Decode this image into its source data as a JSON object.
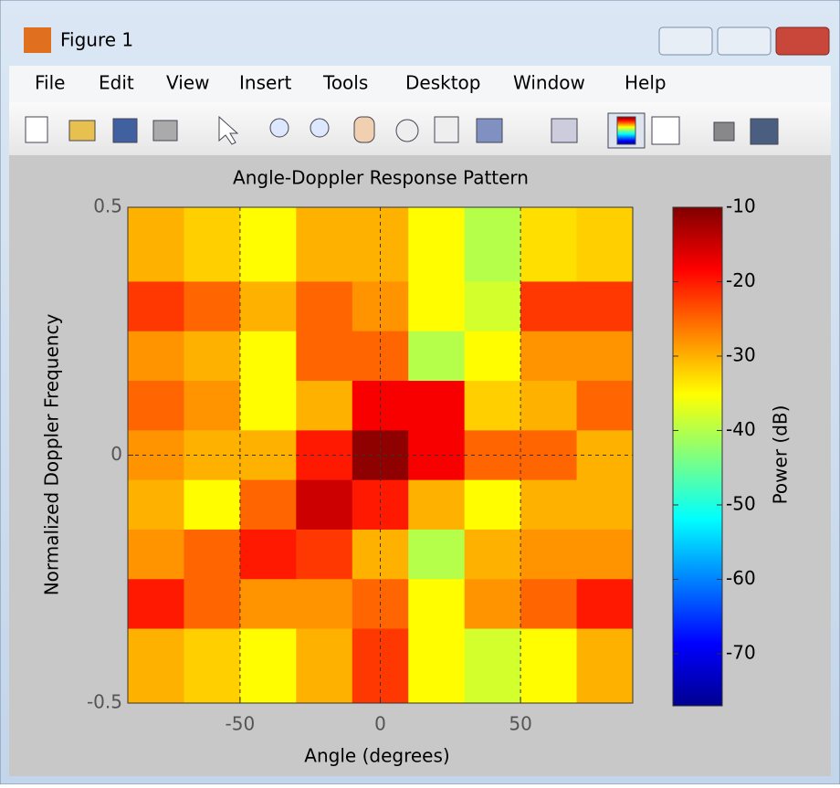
{
  "window": {
    "title": "Figure 1",
    "menu": [
      "File",
      "Edit",
      "View",
      "Insert",
      "Tools",
      "Desktop",
      "Window",
      "Help"
    ]
  },
  "chart_data": {
    "type": "heatmap",
    "title": "Angle-Doppler Response Pattern",
    "xlabel": "Angle (degrees)",
    "ylabel": "Normalized Doppler Frequency",
    "x": [
      -80,
      -60,
      -40,
      -20,
      0,
      20,
      40,
      60,
      80
    ],
    "y": [
      0.4,
      0.3,
      0.2,
      0.1,
      0,
      -0.1,
      -0.2,
      -0.3,
      -0.4
    ],
    "z": [
      [
        -30,
        -32,
        -35,
        -30,
        -30,
        -35,
        -40,
        -33,
        -32
      ],
      [
        -22,
        -25,
        -30,
        -25,
        -28,
        -35,
        -38,
        -22,
        -22
      ],
      [
        -28,
        -30,
        -35,
        -25,
        -25,
        -40,
        -35,
        -28,
        -28
      ],
      [
        -25,
        -28,
        -35,
        -30,
        -18,
        -18,
        -32,
        -30,
        -25
      ],
      [
        -28,
        -30,
        -30,
        -20,
        -11,
        -18,
        -25,
        -25,
        -30
      ],
      [
        -30,
        -35,
        -25,
        -15,
        -20,
        -30,
        -35,
        -30,
        -30
      ],
      [
        -28,
        -25,
        -20,
        -22,
        -30,
        -40,
        -30,
        -28,
        -28
      ],
      [
        -20,
        -25,
        -28,
        -28,
        -25,
        -35,
        -28,
        -25,
        -20
      ],
      [
        -30,
        -32,
        -35,
        -30,
        -22,
        -35,
        -38,
        -35,
        -30
      ]
    ],
    "xlim": [
      -90,
      90
    ],
    "ylim": [
      -0.5,
      0.5
    ],
    "xticks": [
      -50,
      0,
      50
    ],
    "yticks": [
      -0.5,
      0,
      0.5
    ],
    "grid": true,
    "colormap": "jet",
    "clim": [
      -77,
      -10
    ],
    "cticks": [
      -70,
      -60,
      -50,
      -40,
      -30,
      -20,
      -10
    ],
    "colorbar_label": "Power (dB)"
  }
}
